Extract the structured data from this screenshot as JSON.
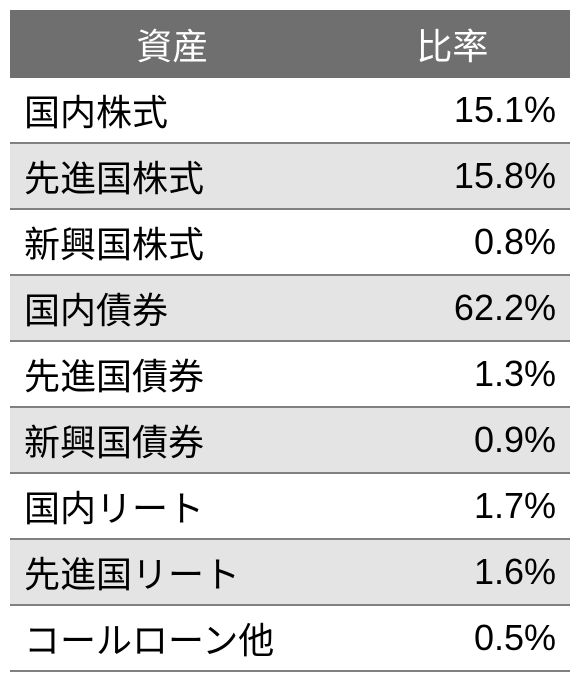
{
  "table": {
    "type": "table",
    "header_bg": "#6f6f6f",
    "header_fg": "#ffffff",
    "row_alt_bg_1": "#ffffff",
    "row_alt_bg_2": "#e4e4e4",
    "border_color": "#808080",
    "font_size": 36,
    "columns": [
      {
        "label": "資産",
        "align": "left",
        "width_pct": 58
      },
      {
        "label": "比率",
        "align": "right",
        "width_pct": 42
      }
    ],
    "rows": [
      {
        "asset": "国内株式",
        "ratio": "15.1%"
      },
      {
        "asset": "先進国株式",
        "ratio": "15.8%"
      },
      {
        "asset": "新興国株式",
        "ratio": "0.8%"
      },
      {
        "asset": "国内債券",
        "ratio": "62.2%"
      },
      {
        "asset": "先進国債券",
        "ratio": "1.3%"
      },
      {
        "asset": "新興国債券",
        "ratio": "0.9%"
      },
      {
        "asset": "国内リート",
        "ratio": "1.7%"
      },
      {
        "asset": "先進国リート",
        "ratio": "1.6%"
      },
      {
        "asset": "コールローン他",
        "ratio": "0.5%"
      }
    ]
  }
}
